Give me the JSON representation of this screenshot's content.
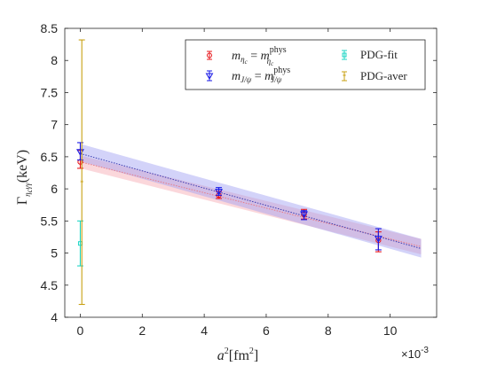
{
  "chart_data": {
    "type": "scatter",
    "title": "",
    "xlabel": {
      "base": "a",
      "sup": "2",
      "unit": "[fm",
      "unit_sup": "2",
      "unit_end": "]"
    },
    "ylabel": {
      "base": "Γ",
      "sub": "η",
      "sub2": "c",
      "sub3": "γγ",
      "unit": "(keV)"
    },
    "x_multiplier": {
      "base": "×10",
      "exp": "-3"
    },
    "xlim": [
      -0.0005,
      0.0115
    ],
    "ylim": [
      4,
      8.5
    ],
    "xticks": [
      0,
      2,
      4,
      6,
      8,
      10
    ],
    "yticks": [
      "4",
      "4.5",
      "5",
      "5.5",
      "6",
      "6.5",
      "7",
      "7.5",
      "8",
      "8.5"
    ],
    "legend_position": "top-right",
    "colors": {
      "red": "#e8191e",
      "blue": "#1a1ae6",
      "cyan": "#1fd6c6",
      "gold": "#c8a012",
      "band_red": "#f7b7bd",
      "band_blue": "#9e9ef2",
      "fit_line": "#3b3bb0"
    },
    "series": [
      {
        "key": "red",
        "legend": {
          "m": "m",
          "msub": "η",
          "msub2": "c",
          "eq": " = ",
          "m2": "m",
          "m2sub": "η",
          "m2sub2": "c",
          "sup": "phys"
        },
        "marker": "circle",
        "points": [
          {
            "x": 0.0,
            "y": 6.42,
            "lo": 6.32,
            "hi": 6.6
          },
          {
            "x": 0.00447,
            "y": 5.9,
            "lo": 5.85,
            "hi": 5.96
          },
          {
            "x": 0.00722,
            "y": 5.6,
            "lo": 5.53,
            "hi": 5.68
          },
          {
            "x": 0.00962,
            "y": 5.2,
            "lo": 5.02,
            "hi": 5.33
          }
        ]
      },
      {
        "key": "blue",
        "legend": {
          "m": "m",
          "msub": "J/ψ",
          "eq": " = ",
          "m2": "m",
          "m2sub": "J/ψ",
          "sup": "phys"
        },
        "marker": "triangle-down",
        "points": [
          {
            "x": 0.0,
            "y": 6.57,
            "lo": 6.45,
            "hi": 6.72
          },
          {
            "x": 0.00447,
            "y": 5.95,
            "lo": 5.9,
            "hi": 6.02
          },
          {
            "x": 0.00722,
            "y": 5.6,
            "lo": 5.52,
            "hi": 5.66
          },
          {
            "x": 0.00962,
            "y": 5.22,
            "lo": 5.05,
            "hi": 5.38
          }
        ]
      },
      {
        "key": "cyan",
        "legend": {
          "text": "PDG-fit"
        },
        "marker": "square",
        "points": [
          {
            "x": 0.0,
            "y": 5.15,
            "lo": 4.8,
            "hi": 5.5
          }
        ]
      },
      {
        "key": "gold",
        "legend": {
          "text": "PDG-aver"
        },
        "marker": "star",
        "points": [
          {
            "x": 5e-05,
            "y": 6.1,
            "lo": 4.2,
            "hi": 8.32
          }
        ]
      }
    ],
    "bands": [
      {
        "key": "band_red",
        "x0": 0.0,
        "x1": 0.011,
        "lower": [
          6.32,
          4.98
        ],
        "center": [
          6.42,
          5.1
        ],
        "upper": [
          6.52,
          5.22
        ]
      },
      {
        "key": "band_blue",
        "x0": 0.0,
        "x1": 0.011,
        "lower": [
          6.43,
          4.93
        ],
        "center": [
          6.55,
          5.07
        ],
        "upper": [
          6.7,
          5.22
        ]
      }
    ]
  }
}
